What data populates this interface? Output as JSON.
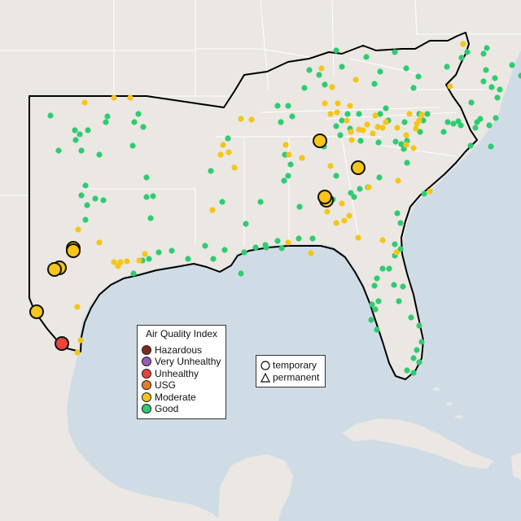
{
  "legend": {
    "title": "Air Quality Index",
    "categories": [
      {
        "label": "Hazardous",
        "color": "#7e2b1f"
      },
      {
        "label": "Very Unhealthy",
        "color": "#9b59b6"
      },
      {
        "label": "Unhealthy",
        "color": "#e8453c"
      },
      {
        "label": "USG",
        "color": "#e67e22"
      },
      {
        "label": "Moderate",
        "color": "#f5c518"
      },
      {
        "label": "Good",
        "color": "#2ecc71"
      }
    ]
  },
  "monitor_types": {
    "items": [
      {
        "label": "temporary",
        "icon": "circle-icon"
      },
      {
        "label": "permanent",
        "icon": "triangle-icon"
      }
    ]
  },
  "colors": {
    "water": "#cfdce6",
    "land": "#ebe7e3",
    "region_outline": "#000000",
    "state_border": "#ffffff"
  }
}
